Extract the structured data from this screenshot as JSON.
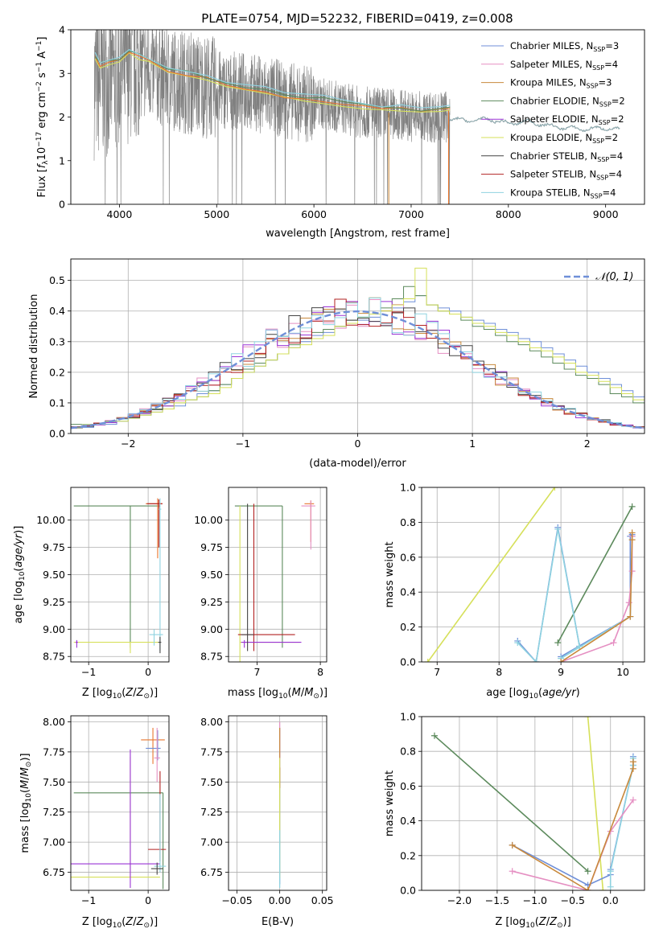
{
  "figure": {
    "title": "PLATE=0754, MJD=52232, FIBERID=0419, z=0.008"
  },
  "colors": {
    "Chabrier MILES": "#6f8fd8",
    "Salpeter MILES": "#e58fc2",
    "Kroupa MILES": "#c8893c",
    "Chabrier ELODIE": "#5c8a5c",
    "Salpeter ELODIE": "#9b34d6",
    "Kroupa ELODIE": "#d6e05a",
    "Chabrier STELIB": "#444444",
    "Salpeter STELIB": "#b22222",
    "Kroupa STELIB": "#8fd3e0",
    "data": "#808080",
    "orange": "#e8762d",
    "grid": "#b0b0b0"
  },
  "chart_data": [
    {
      "type": "line",
      "name": "spectrum",
      "title": "PLATE=0754, MJD=52232, FIBERID=0419, z=0.008",
      "xlabel": "wavelength [Angstrom, rest frame]",
      "ylabel_parts": [
        "Flux [",
        "f",
        "λ",
        "10",
        "−17",
        " erg cm",
        "−2",
        " s",
        "−1",
        " A",
        "−1",
        "]"
      ],
      "xlim": [
        3500,
        9400
      ],
      "ylim": [
        0,
        4
      ],
      "xticks": [
        4000,
        5000,
        6000,
        7000,
        8000,
        9000
      ],
      "yticks": [
        0,
        1,
        2,
        3,
        4
      ],
      "grid": false,
      "legend_position": "top-right",
      "legend": [
        {
          "label": "Chabrier MILES, N",
          "sub": "SSP",
          "suffix": "=3"
        },
        {
          "label": "Salpeter MILES, N",
          "sub": "SSP",
          "suffix": "=4"
        },
        {
          "label": "Kroupa MILES, N",
          "sub": "SSP",
          "suffix": "=3"
        },
        {
          "label": "Chabrier ELODIE, N",
          "sub": "SSP",
          "suffix": "=2"
        },
        {
          "label": "Salpeter ELODIE, N",
          "sub": "SSP",
          "suffix": "=2"
        },
        {
          "label": "Kroupa ELODIE, N",
          "sub": "SSP",
          "suffix": "=2"
        },
        {
          "label": "Chabrier STELIB, N",
          "sub": "SSP",
          "suffix": "=4"
        },
        {
          "label": "Salpeter STELIB, N",
          "sub": "SSP",
          "suffix": "=4"
        },
        {
          "label": "Kroupa STELIB, N",
          "sub": "SSP",
          "suffix": "=4"
        }
      ],
      "data_trend": {
        "x": [
          3750,
          3900,
          4000,
          4100,
          4300,
          4500,
          4700,
          4900,
          5100,
          5300,
          5500,
          5700,
          5900,
          6100,
          6300,
          6500,
          6700,
          6900,
          7100,
          7300,
          7400
        ],
        "y": [
          2.8,
          2.9,
          3.0,
          3.2,
          3.1,
          2.9,
          2.8,
          2.7,
          2.6,
          2.6,
          2.5,
          2.4,
          2.3,
          2.3,
          2.2,
          2.1,
          2.1,
          2.05,
          2.0,
          2.0,
          2.0
        ]
      },
      "stelib_tail": {
        "x": [
          7400,
          7600,
          7800,
          8000,
          8200,
          8400,
          8600,
          8800,
          9000,
          9150
        ],
        "y": [
          1.95,
          1.92,
          1.95,
          1.85,
          1.9,
          1.8,
          1.75,
          1.72,
          1.75,
          1.7
        ]
      },
      "model_milesish": {
        "x": [
          3750,
          3800,
          3900,
          4000,
          4100,
          4200,
          4300,
          4500,
          4700,
          4900,
          5100,
          5300,
          5500,
          5700,
          5900,
          6100,
          6300,
          6500,
          6700,
          6900,
          7100,
          7300,
          7400
        ],
        "y": [
          3.4,
          3.2,
          3.25,
          3.3,
          3.5,
          3.4,
          3.3,
          3.1,
          3.0,
          2.9,
          2.75,
          2.65,
          2.6,
          2.5,
          2.45,
          2.4,
          2.3,
          2.25,
          2.2,
          2.2,
          2.15,
          2.2,
          2.2
        ]
      }
    },
    {
      "type": "histogram",
      "name": "residuals",
      "xlabel": "(data-model)/error",
      "ylabel": "Normed distribution",
      "xlim": [
        -2.5,
        2.5
      ],
      "ylim": [
        0,
        0.57
      ],
      "xticks": [
        -2,
        -1,
        0,
        1,
        2
      ],
      "yticks": [
        0.0,
        0.1,
        0.2,
        0.3,
        0.4,
        0.5
      ],
      "grid": true,
      "legend_position": "top-right",
      "legend_label": "𝒩(0, 1)",
      "bin_width": 0.1,
      "bin_start": -2.5,
      "series": [
        {
          "name": "Chabrier MILES",
          "values": [
            0.02,
            0.02,
            0.03,
            0.03,
            0.04,
            0.05,
            0.06,
            0.07,
            0.08,
            0.09,
            0.11,
            0.13,
            0.14,
            0.16,
            0.18,
            0.2,
            0.22,
            0.24,
            0.26,
            0.28,
            0.3,
            0.32,
            0.33,
            0.35,
            0.36,
            0.37,
            0.38,
            0.4,
            0.41,
            0.43,
            0.45,
            0.42,
            0.41,
            0.4,
            0.38,
            0.37,
            0.36,
            0.34,
            0.33,
            0.31,
            0.3,
            0.28,
            0.26,
            0.24,
            0.22,
            0.2,
            0.18,
            0.16,
            0.14,
            0.12
          ]
        },
        {
          "name": "Chabrier ELODIE",
          "values": [
            0.03,
            0.03,
            0.03,
            0.04,
            0.05,
            0.05,
            0.06,
            0.08,
            0.09,
            0.1,
            0.11,
            0.12,
            0.14,
            0.16,
            0.18,
            0.21,
            0.23,
            0.24,
            0.26,
            0.29,
            0.31,
            0.33,
            0.34,
            0.35,
            0.37,
            0.38,
            0.39,
            0.41,
            0.44,
            0.48,
            0.45,
            0.42,
            0.4,
            0.39,
            0.37,
            0.35,
            0.34,
            0.32,
            0.3,
            0.29,
            0.27,
            0.25,
            0.23,
            0.21,
            0.19,
            0.18,
            0.16,
            0.13,
            0.12,
            0.1
          ]
        },
        {
          "name": "Kroupa ELODIE",
          "values": [
            0.02,
            0.03,
            0.03,
            0.04,
            0.04,
            0.05,
            0.06,
            0.07,
            0.08,
            0.1,
            0.11,
            0.12,
            0.13,
            0.15,
            0.18,
            0.2,
            0.22,
            0.24,
            0.26,
            0.28,
            0.29,
            0.31,
            0.32,
            0.35,
            0.36,
            0.38,
            0.39,
            0.4,
            0.42,
            0.44,
            0.54,
            0.42,
            0.4,
            0.39,
            0.38,
            0.36,
            0.35,
            0.33,
            0.32,
            0.3,
            0.28,
            0.27,
            0.25,
            0.23,
            0.2,
            0.19,
            0.17,
            0.15,
            0.13,
            0.11
          ]
        }
      ]
    },
    {
      "type": "scatter",
      "name": "age-vs-metallicity",
      "xlabel": "Z [log10(Z/Z⊙)]",
      "ylabel": "age  [log10(age/yr)]",
      "xlim": [
        -1.3,
        0.35
      ],
      "ylim": [
        8.7,
        10.3
      ],
      "xticks": [
        -1,
        0
      ],
      "yticks": [
        8.75,
        9.0,
        9.25,
        9.5,
        9.75,
        10.0
      ],
      "grid": true
    },
    {
      "type": "scatter",
      "name": "age-vs-mass",
      "xlabel": "mass [log10(M/M⊙)]",
      "xlim": [
        6.55,
        8.1
      ],
      "ylim": [
        8.7,
        10.3
      ],
      "xticks": [
        7,
        8
      ],
      "yticks": [
        8.75,
        9.0,
        9.25,
        9.5,
        9.75,
        10.0
      ],
      "grid": true
    },
    {
      "type": "line",
      "name": "mass-weight-vs-age",
      "xlabel": "age  [log10(age/yr)]",
      "ylabel": "mass weight",
      "xlim": [
        6.75,
        10.35
      ],
      "ylim": [
        0,
        1
      ],
      "xticks": [
        7,
        8,
        9,
        10
      ],
      "yticks": [
        0.0,
        0.2,
        0.4,
        0.6,
        0.8,
        1.0
      ],
      "grid": true,
      "series": [
        {
          "name": "Kroupa ELODIE",
          "x": [
            6.85,
            8.9
          ],
          "y": [
            0.0,
            1.0
          ]
        },
        {
          "name": "Chabrier ELODIE",
          "x": [
            8.95,
            10.15
          ],
          "y": [
            0.11,
            0.89
          ]
        },
        {
          "name": "Chabrier MILES",
          "x": [
            8.3,
            8.6,
            8.95,
            9.3,
            9.0,
            10.12,
            10.12,
            10.15
          ],
          "y": [
            0.12,
            0.0,
            0.77,
            0.09,
            0.03,
            0.26,
            0.72,
            0.73
          ]
        },
        {
          "name": "Kroupa STELIB",
          "x": [
            8.3,
            8.6,
            8.95,
            9.3,
            9.0,
            10.12,
            10.15
          ],
          "y": [
            0.11,
            0.0,
            0.76,
            0.09,
            0.02,
            0.26,
            0.72
          ]
        },
        {
          "name": "Salpeter MILES",
          "x": [
            9.0,
            9.85,
            10.1,
            10.15,
            10.15
          ],
          "y": [
            0.0,
            0.11,
            0.34,
            0.52,
            0.72
          ]
        },
        {
          "name": "Kroupa MILES",
          "x": [
            9.0,
            10.12,
            10.15,
            10.15
          ],
          "y": [
            0.0,
            0.26,
            0.7,
            0.74
          ]
        }
      ]
    },
    {
      "type": "scatter",
      "name": "mass-vs-metallicity",
      "xlabel": "Z [log10(Z/Z⊙)]",
      "ylabel": "mass [log10(M/M⊙)]",
      "xlim": [
        -1.3,
        0.35
      ],
      "ylim": [
        6.6,
        8.05
      ],
      "xticks": [
        -1,
        0
      ],
      "yticks": [
        6.75,
        7.0,
        7.25,
        7.5,
        7.75,
        8.0
      ],
      "grid": true
    },
    {
      "type": "scatter",
      "name": "mass-vs-ebv",
      "xlabel": "E(B-V)",
      "xlim": [
        -0.06,
        0.055
      ],
      "ylim": [
        6.6,
        8.05
      ],
      "xticks": [
        -0.05,
        0.0,
        0.05
      ],
      "yticks": [
        6.75,
        7.0,
        7.25,
        7.5,
        7.75,
        8.0
      ],
      "grid": true
    },
    {
      "type": "line",
      "name": "mass-weight-vs-metallicity",
      "xlabel": "Z [log10(Z/Z⊙)]",
      "ylabel": "mass weight",
      "xlim": [
        -2.5,
        0.45
      ],
      "ylim": [
        0,
        1
      ],
      "xticks": [
        -2.0,
        -1.5,
        -1.0,
        -0.5,
        0.0
      ],
      "yticks": [
        0.0,
        0.2,
        0.4,
        0.6,
        0.8,
        1.0
      ],
      "grid": true,
      "series": [
        {
          "name": "Chabrier ELODIE",
          "x": [
            -2.33,
            -0.3
          ],
          "y": [
            0.89,
            0.11
          ]
        },
        {
          "name": "Kroupa ELODIE",
          "x": [
            -0.3,
            -0.1
          ],
          "y": [
            1.0,
            0.0
          ]
        },
        {
          "name": "Chabrier MILES",
          "x": [
            -1.3,
            -0.3,
            0.0,
            0.0,
            0.3,
            0.3
          ],
          "y": [
            0.26,
            0.03,
            0.09,
            0.12,
            0.72,
            0.77
          ]
        },
        {
          "name": "Kroupa STELIB",
          "x": [
            0.0,
            0.0,
            0.3,
            0.3
          ],
          "y": [
            0.02,
            0.11,
            0.72,
            0.76
          ]
        },
        {
          "name": "Salpeter MILES",
          "x": [
            -1.3,
            -0.3,
            0.0,
            0.3
          ],
          "y": [
            0.11,
            0.0,
            0.34,
            0.52
          ]
        },
        {
          "name": "Kroupa MILES",
          "x": [
            -1.3,
            -0.3,
            0.3,
            0.3
          ],
          "y": [
            0.26,
            0.0,
            0.7,
            0.74
          ]
        }
      ]
    }
  ]
}
